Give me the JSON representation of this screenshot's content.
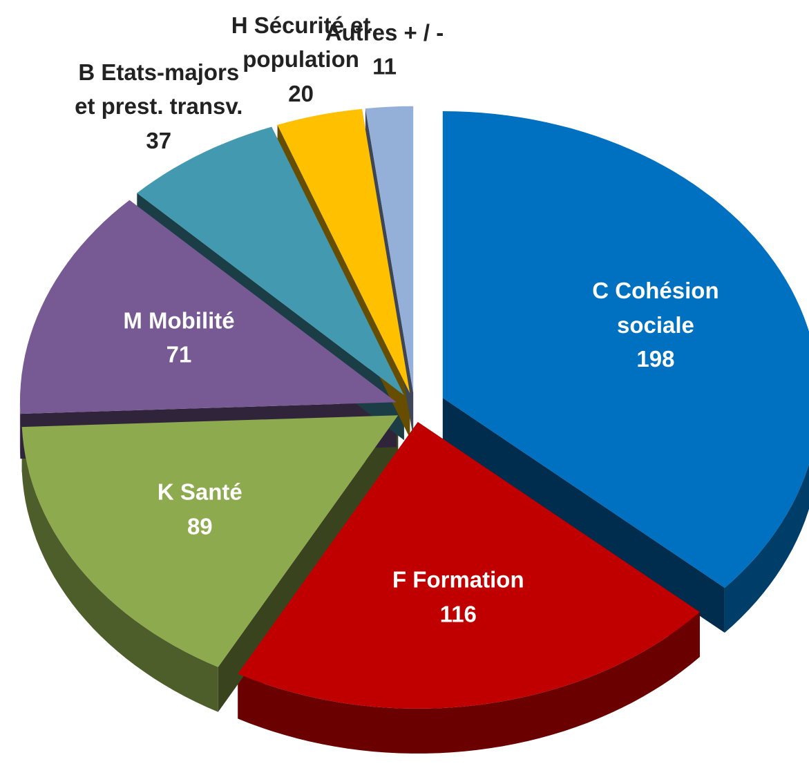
{
  "chart_data": {
    "type": "pie",
    "categories": [
      "C Cohésion sociale",
      "F Formation",
      "K Santé",
      "M Mobilité",
      "B Etats-majors et prest. transv.",
      "H Sécurité et population",
      "Autres + / -"
    ],
    "values": [
      198,
      116,
      89,
      71,
      37,
      20,
      11
    ],
    "colors": [
      "#0070c0",
      "#c00000",
      "#8eaa4e",
      "#775a94",
      "#4399b0",
      "#ffc000",
      "#95b0d8"
    ]
  }
}
